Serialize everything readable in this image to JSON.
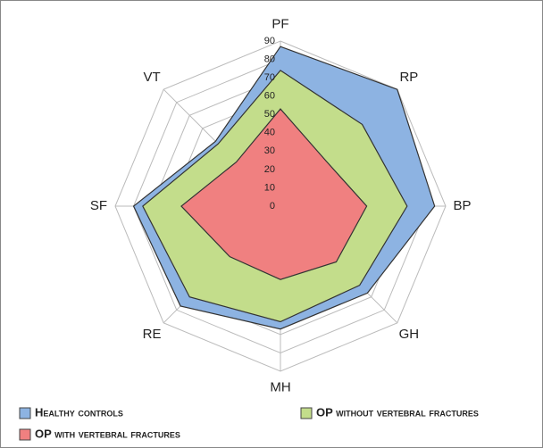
{
  "chart_data": {
    "type": "radar",
    "categories": [
      "PF",
      "RP",
      "BP",
      "GH",
      "MH",
      "RE",
      "SF",
      "VT"
    ],
    "series": [
      {
        "name": "Healthy controls",
        "color": "#8db3e2",
        "values": [
          87,
          90,
          84,
          67,
          67,
          77,
          80,
          50
        ]
      },
      {
        "name": "OP without vertebral fractures",
        "color": "#c3dd8b",
        "values": [
          74,
          63,
          69,
          61,
          63,
          70,
          75,
          48
        ]
      },
      {
        "name": "OP with vertebral fractures",
        "color": "#f08080",
        "values": [
          53,
          35,
          47,
          43,
          40,
          39,
          54,
          34
        ]
      }
    ],
    "ylim": [
      0,
      90
    ],
    "yticks": [
      0,
      10,
      20,
      30,
      40,
      50,
      60,
      70,
      80,
      90
    ],
    "grid": true
  }
}
